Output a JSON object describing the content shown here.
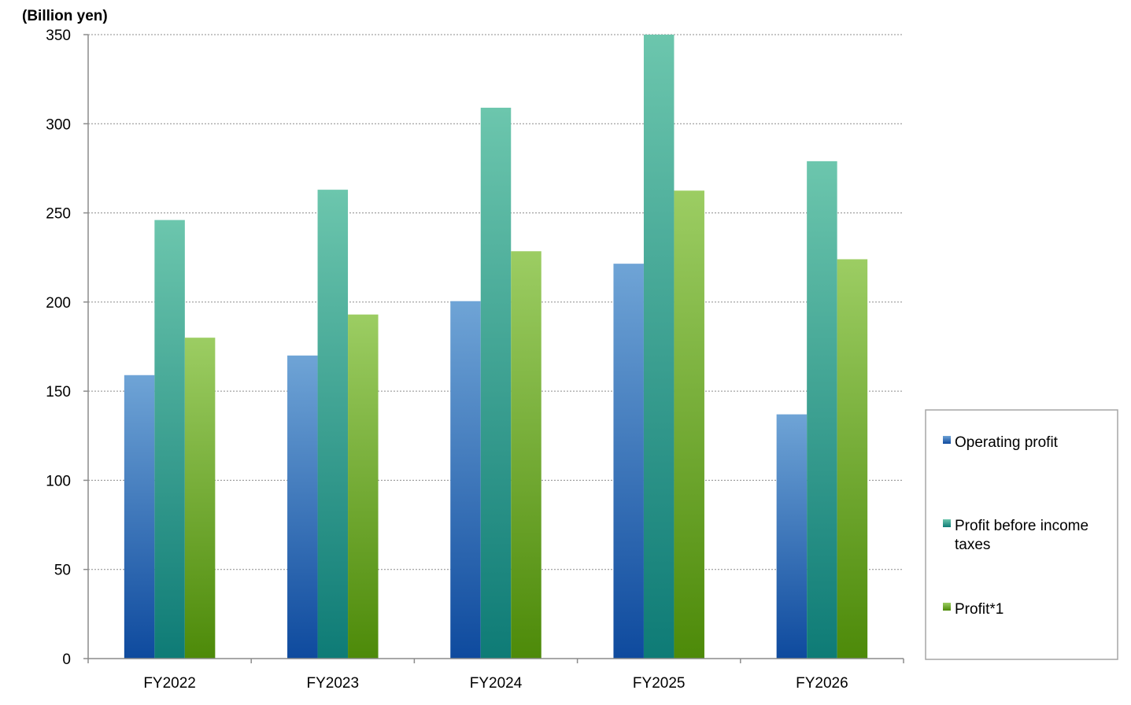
{
  "chart_data": {
    "type": "bar",
    "unit_label": "(Billion yen)",
    "categories": [
      "FY2022",
      "FY2023",
      "FY2024",
      "FY2025",
      "FY2026"
    ],
    "series": [
      {
        "name": "Operating profit",
        "values": [
          159,
          170,
          200.5,
          221.5,
          137
        ],
        "color_top": "#6fa4d6",
        "color_bottom": "#0e4a9e"
      },
      {
        "name": "Profit before income taxes",
        "values": [
          246,
          263,
          309,
          350,
          279
        ],
        "color_top": "#6cc6ad",
        "color_bottom": "#0e7b76"
      },
      {
        "name": "Profit*1",
        "values": [
          180,
          193,
          228.5,
          262.5,
          224
        ],
        "color_top": "#9ccd63",
        "color_bottom": "#4d8a09"
      }
    ],
    "ylim": [
      0,
      350
    ],
    "yticks": [
      0,
      50,
      100,
      150,
      200,
      250,
      300,
      350
    ],
    "grid": true,
    "grid_style": "dotted",
    "legend_position": "right"
  }
}
